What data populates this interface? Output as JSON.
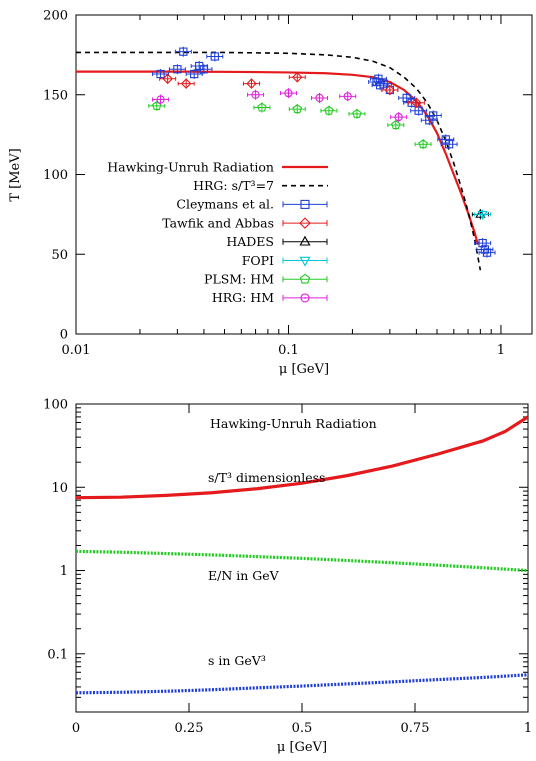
{
  "chart_data": [
    {
      "type": "scatter",
      "xscale": "log",
      "xlim": [
        0.01,
        1.4
      ],
      "ylim": [
        0,
        200
      ],
      "xlabel": "μ [GeV]",
      "ylabel": "T [MeV]",
      "grid": false,
      "legend_position": "bottom-left",
      "x_ticks": [
        {
          "value": 0.01,
          "label": "0.01"
        },
        {
          "value": 0.1,
          "label": "0.1"
        },
        {
          "value": 1,
          "label": "1"
        }
      ],
      "y_ticks": [
        {
          "value": 0,
          "label": "0"
        },
        {
          "value": 50,
          "label": "50"
        },
        {
          "value": 100,
          "label": "100"
        },
        {
          "value": 150,
          "label": "150"
        },
        {
          "value": 200,
          "label": "200"
        }
      ],
      "series": [
        {
          "name": "Hawking-Unruh Radiation",
          "kind": "line",
          "style": "solid",
          "color": "#e41a1c",
          "points": [
            [
              0.01,
              164.5
            ],
            [
              0.03,
              164.5
            ],
            [
              0.06,
              164.3
            ],
            [
              0.1,
              164
            ],
            [
              0.15,
              163.5
            ],
            [
              0.2,
              162.5
            ],
            [
              0.25,
              161
            ],
            [
              0.3,
              158
            ],
            [
              0.35,
              153
            ],
            [
              0.4,
              146
            ],
            [
              0.45,
              137
            ],
            [
              0.5,
              126
            ],
            [
              0.55,
              113
            ],
            [
              0.6,
              100
            ],
            [
              0.65,
              88
            ],
            [
              0.7,
              76
            ],
            [
              0.75,
              64
            ],
            [
              0.78,
              56
            ]
          ]
        },
        {
          "name": "HRG: s/T³=7",
          "kind": "line",
          "style": "dashed",
          "color": "#000000",
          "points": [
            [
              0.01,
              176.5
            ],
            [
              0.05,
              176.5
            ],
            [
              0.1,
              176
            ],
            [
              0.15,
              175
            ],
            [
              0.2,
              173.5
            ],
            [
              0.25,
              171
            ],
            [
              0.3,
              167
            ],
            [
              0.35,
              161
            ],
            [
              0.4,
              154
            ],
            [
              0.45,
              145
            ],
            [
              0.5,
              134
            ],
            [
              0.55,
              121
            ],
            [
              0.6,
              107
            ],
            [
              0.65,
              92
            ],
            [
              0.7,
              77
            ],
            [
              0.75,
              60
            ],
            [
              0.8,
              40
            ]
          ]
        },
        {
          "name": "Cleymans et al.",
          "kind": "points",
          "marker": "square",
          "color": "#1f3fd6",
          "points": [
            [
              0.025,
              163
            ],
            [
              0.03,
              166
            ],
            [
              0.032,
              177
            ],
            [
              0.036,
              163
            ],
            [
              0.038,
              168
            ],
            [
              0.04,
              166
            ],
            [
              0.045,
              174
            ],
            [
              0.26,
              158
            ],
            [
              0.265,
              160
            ],
            [
              0.27,
              156
            ],
            [
              0.28,
              157
            ],
            [
              0.3,
              153
            ],
            [
              0.36,
              148
            ],
            [
              0.38,
              145
            ],
            [
              0.41,
              140
            ],
            [
              0.46,
              134
            ],
            [
              0.48,
              137
            ],
            [
              0.55,
              122
            ],
            [
              0.57,
              119
            ],
            [
              0.82,
              57
            ],
            [
              0.84,
              53
            ],
            [
              0.86,
              51
            ]
          ]
        },
        {
          "name": "Tawfik and Abbas",
          "kind": "points",
          "marker": "diamond",
          "color": "#e41a1c",
          "points": [
            [
              0.027,
              160
            ],
            [
              0.033,
              157
            ],
            [
              0.067,
              157
            ],
            [
              0.11,
              161
            ],
            [
              0.3,
              153
            ],
            [
              0.4,
              145
            ]
          ]
        },
        {
          "name": "HADES",
          "kind": "points",
          "marker": "triangle-up",
          "color": "#000000",
          "points": [
            [
              0.8,
              75
            ]
          ]
        },
        {
          "name": "FOPI",
          "kind": "points",
          "marker": "triangle-down",
          "color": "#00c8d8",
          "points": [
            [
              0.82,
              75
            ]
          ]
        },
        {
          "name": "PLSM: HM",
          "kind": "points",
          "marker": "pentagon",
          "color": "#22cc22",
          "points": [
            [
              0.024,
              143
            ],
            [
              0.075,
              142
            ],
            [
              0.11,
              141
            ],
            [
              0.155,
              140
            ],
            [
              0.21,
              138
            ],
            [
              0.32,
              131
            ],
            [
              0.43,
              119
            ]
          ]
        },
        {
          "name": "HRG: HM",
          "kind": "points",
          "marker": "circle",
          "color": "#e020e0",
          "points": [
            [
              0.025,
              147
            ],
            [
              0.07,
              150
            ],
            [
              0.1,
              151
            ],
            [
              0.14,
              148
            ],
            [
              0.19,
              149
            ],
            [
              0.33,
              136
            ]
          ]
        }
      ]
    },
    {
      "type": "line",
      "yscale": "log",
      "xlim": [
        0,
        1
      ],
      "ylim": [
        0.02,
        100
      ],
      "xlabel": "μ [GeV]",
      "ylabel": "",
      "grid": false,
      "x_ticks": [
        {
          "value": 0,
          "label": "0"
        },
        {
          "value": 0.25,
          "label": "0.25"
        },
        {
          "value": 0.5,
          "label": "0.5"
        },
        {
          "value": 0.75,
          "label": "0.75"
        },
        {
          "value": 1,
          "label": "1"
        }
      ],
      "y_ticks": [
        {
          "value": 0.1,
          "label": "0.1"
        },
        {
          "value": 1,
          "label": "1"
        },
        {
          "value": 10,
          "label": "10"
        },
        {
          "value": 100,
          "label": "100"
        }
      ],
      "title_annotation": "Hawking-Unruh Radiation",
      "series": [
        {
          "name": "s/T³ dimensionless",
          "color": "#e41a1c",
          "style": "solid",
          "x": [
            0,
            0.1,
            0.2,
            0.3,
            0.4,
            0.5,
            0.6,
            0.7,
            0.8,
            0.9,
            0.95,
            1.0
          ],
          "values": [
            7.5,
            7.6,
            8.0,
            8.6,
            9.6,
            11.2,
            13.8,
            18,
            25,
            36,
            47,
            70
          ]
        },
        {
          "name": "E/N in GeV",
          "color": "#22cc22",
          "style": "dotted",
          "x": [
            0,
            0.1,
            0.2,
            0.3,
            0.4,
            0.5,
            0.6,
            0.7,
            0.8,
            0.9,
            1.0
          ],
          "values": [
            1.7,
            1.66,
            1.6,
            1.54,
            1.47,
            1.4,
            1.32,
            1.24,
            1.16,
            1.08,
            1.0
          ]
        },
        {
          "name": "s in GeV³",
          "color": "#1f3fd6",
          "style": "dotted",
          "x": [
            0,
            0.1,
            0.2,
            0.3,
            0.4,
            0.5,
            0.6,
            0.7,
            0.8,
            0.9,
            1.0
          ],
          "values": [
            0.034,
            0.0345,
            0.0355,
            0.037,
            0.039,
            0.041,
            0.0435,
            0.046,
            0.049,
            0.052,
            0.056
          ]
        }
      ]
    }
  ]
}
